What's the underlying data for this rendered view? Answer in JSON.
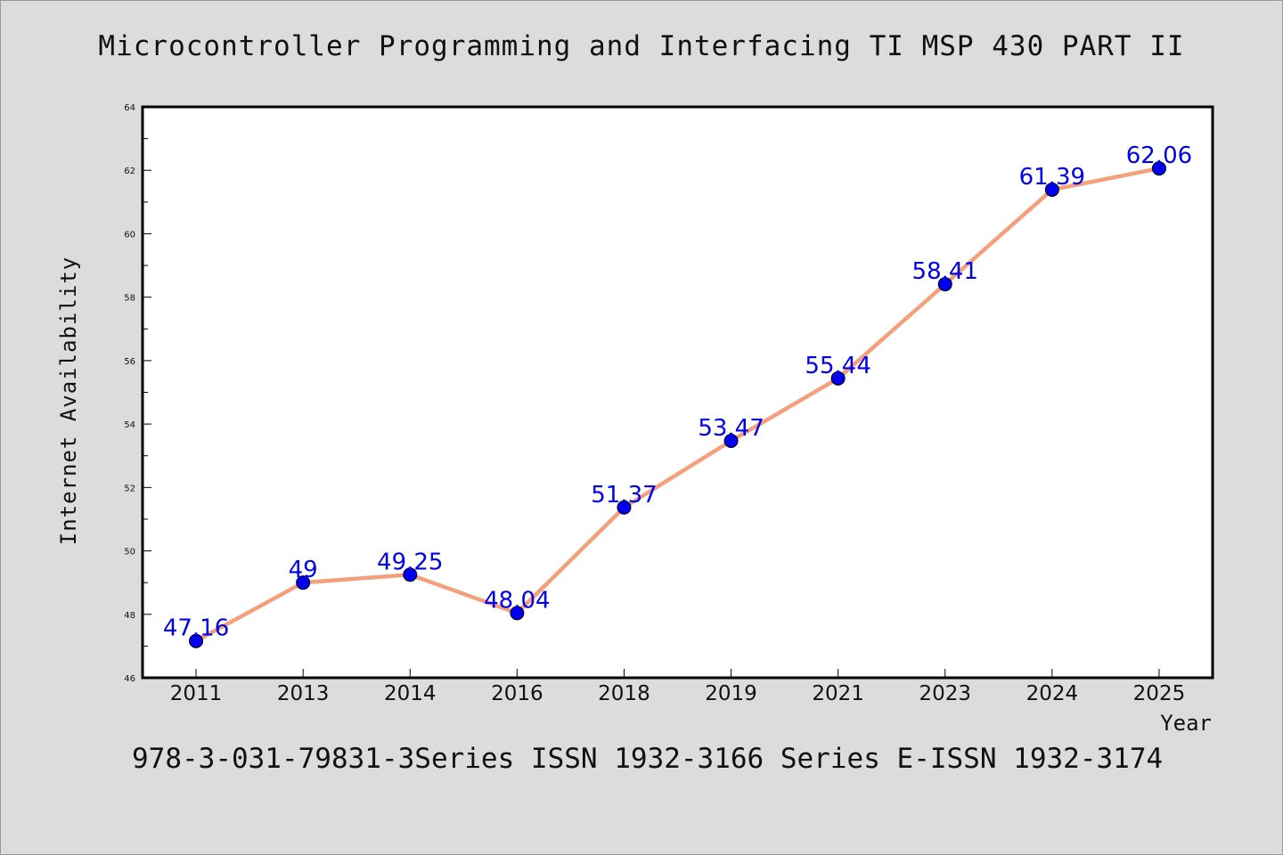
{
  "chart_data": {
    "type": "line",
    "title": "Microcontroller Programming and Interfacing TI MSP 430 PART II",
    "xlabel": "Year",
    "ylabel": "Internet Availability",
    "categories": [
      "2011",
      "2013",
      "2014",
      "2016",
      "2018",
      "2019",
      "2021",
      "2023",
      "2024",
      "2025"
    ],
    "series": [
      {
        "values": [
          47.16,
          49,
          49.25,
          48.04,
          51.37,
          53.47,
          55.44,
          58.41,
          61.39,
          62.06
        ],
        "labels": [
          "47.16",
          "49",
          "49.25",
          "48.04",
          "51.37",
          "53.47",
          "55.44",
          "58.41",
          "61.39",
          "62.06"
        ],
        "line_color": "#f4a07c",
        "marker_color": "#0000ee",
        "label_color": "#0000ee"
      }
    ],
    "ylim": [
      46,
      64
    ],
    "yticks": [
      "46",
      "48",
      "50",
      "52",
      "54",
      "56",
      "58",
      "60",
      "62",
      "64"
    ],
    "grid": false,
    "legend": "none"
  },
  "footer": "978-3-031-79831-3Series ISSN 1932-3166 Series E-ISSN 1932-3174"
}
